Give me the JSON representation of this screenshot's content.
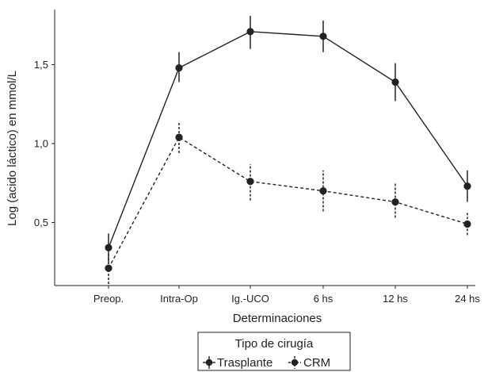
{
  "chart_data": {
    "type": "line",
    "title": "",
    "xlabel": "Determinaciones",
    "ylabel": "Log (acido láctico) en mmol/L",
    "categories": [
      "Preop.",
      "Intra-Op",
      "Ig.-UCO",
      "6 hs",
      "12 hs",
      "24 hs"
    ],
    "ylim": [
      0.1,
      1.85
    ],
    "yticks": [
      0.5,
      1.0,
      1.5
    ],
    "ytick_labels": [
      "0,5",
      "1,0",
      "1,5"
    ],
    "grid": false,
    "legend": {
      "title": "Tipo de cirugía",
      "placement": "bottom-center"
    },
    "series": [
      {
        "name": "Trasplante",
        "line_style": "solid",
        "color": "#222222",
        "values": [
          0.34,
          1.48,
          1.71,
          1.68,
          1.39,
          0.73
        ],
        "lower": [
          0.25,
          1.39,
          1.6,
          1.58,
          1.27,
          0.63
        ],
        "upper": [
          0.43,
          1.58,
          1.81,
          1.78,
          1.51,
          0.83
        ]
      },
      {
        "name": "CRM",
        "line_style": "dashed",
        "color": "#222222",
        "values": [
          0.21,
          1.04,
          0.76,
          0.7,
          0.63,
          0.49
        ],
        "lower": [
          0.11,
          0.94,
          0.64,
          0.57,
          0.53,
          0.42
        ],
        "upper": [
          0.3,
          1.14,
          0.87,
          0.83,
          0.75,
          0.57
        ]
      }
    ]
  }
}
